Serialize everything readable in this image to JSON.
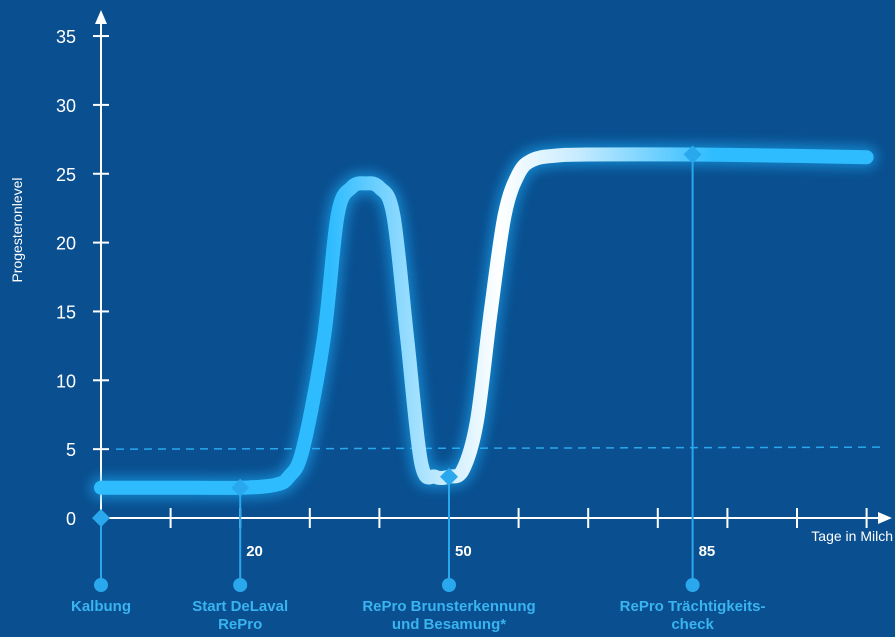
{
  "chart_data": {
    "type": "line",
    "ylabel": "Progesteronlevel",
    "xlabel": "Tage in Milch",
    "ylim": [
      0,
      35
    ],
    "xlim": [
      0,
      110
    ],
    "yticks": [
      0,
      5,
      10,
      15,
      20,
      25,
      30,
      35
    ],
    "threshold": 5,
    "grid": false,
    "series": [
      {
        "x": [
          0,
          10,
          20,
          25,
          27,
          29,
          32,
          34,
          36,
          38,
          40,
          42,
          44,
          46,
          48,
          50,
          52,
          54,
          56,
          58,
          60,
          62,
          65,
          70,
          85,
          100,
          110
        ],
        "values": [
          2.2,
          2.2,
          2.2,
          2.4,
          3,
          5,
          13,
          22,
          24,
          24.3,
          24,
          22,
          13,
          4,
          3,
          3,
          3.5,
          7,
          15,
          22,
          25,
          26,
          26.3,
          26.4,
          26.4,
          26.3,
          26.2
        ]
      }
    ],
    "day_labels": [
      "20",
      "50",
      "85"
    ],
    "events": [
      {
        "day": 0,
        "value": 0,
        "label": [
          "Kalbung"
        ]
      },
      {
        "day": 20,
        "value": 2.2,
        "label": [
          "Start DeLaval",
          "RePro"
        ]
      },
      {
        "day": 50,
        "value": 3,
        "label": [
          "RePro Brunsterkennung",
          "und Besamung*"
        ]
      },
      {
        "day": 85,
        "value": 26.4,
        "label": [
          "RePro Trächtigkeits-",
          "check"
        ]
      }
    ],
    "colors": {
      "background": "#0a4f8f",
      "accent": "#2aa8ee",
      "curve_glow": "#1fb4ff",
      "curve_core": "#e8f6ff",
      "axis": "#ffffff"
    }
  }
}
